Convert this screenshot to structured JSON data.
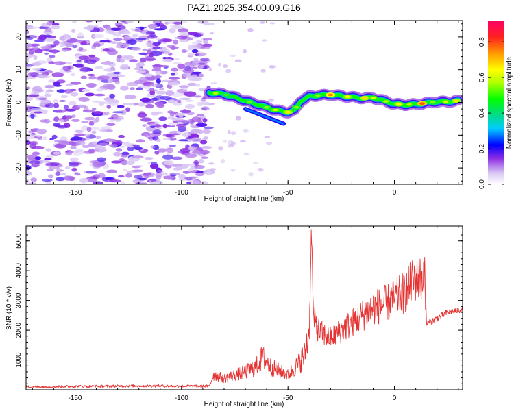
{
  "figure_title": "PAZ1.2025.354.00.09.G16",
  "chart_data": [
    {
      "type": "heatmap",
      "title": "PAZ1.2025.354.00.09.G16",
      "xlabel": "Height of straight line (km)",
      "ylabel": "Frequency (Hz)",
      "xlim": [
        -173,
        32
      ],
      "ylim": [
        -25,
        25
      ],
      "xticks": [
        -150,
        -100,
        -50,
        0
      ],
      "yticks": [
        -20,
        -10,
        0,
        10,
        20
      ],
      "noise_region_x": [
        -173,
        -87
      ],
      "signal_ridge": {
        "x": [
          -87,
          -80,
          -75,
          -70,
          -65,
          -60,
          -55,
          -50,
          -47,
          -44,
          -40,
          -35,
          -30,
          -25,
          -20,
          -15,
          -10,
          -5,
          0,
          5,
          10,
          15,
          20,
          25,
          30
        ],
        "freq": [
          3,
          2.5,
          1.5,
          0.5,
          -0.5,
          -1.5,
          -2.5,
          -3,
          -2.5,
          0.5,
          1.8,
          2.2,
          2.3,
          2,
          1.6,
          1.3,
          1.4,
          0.5,
          -0.5,
          -0.7,
          -0.6,
          -0.2,
          0.2,
          0.2,
          0.5
        ]
      },
      "colorbar": {
        "label": "Normalized spectral amplitude",
        "range": [
          0,
          0.92
        ],
        "ticks": [
          0.0,
          0.2,
          0.4,
          0.6,
          0.8
        ]
      }
    },
    {
      "type": "line",
      "xlabel": "Height of straight line (km)",
      "ylabel": "SNR (10 * v/v)",
      "xlim": [
        -173,
        32
      ],
      "ylim": [
        0,
        5500
      ],
      "xticks": [
        -150,
        -100,
        -50,
        0
      ],
      "yticks": [
        1000,
        2000,
        3000,
        4000,
        5000
      ],
      "color": "#e53333",
      "anchors": {
        "x": [
          -173,
          -120,
          -87,
          -85,
          -80,
          -70,
          -65,
          -62,
          -58,
          -50,
          -45,
          -42,
          -40,
          -39,
          -38,
          -35,
          -30,
          -20,
          -10,
          -5,
          0,
          5,
          10,
          13,
          14,
          15,
          20,
          25,
          32
        ],
        "y": [
          100,
          130,
          120,
          450,
          350,
          550,
          700,
          1000,
          700,
          450,
          800,
          1100,
          1900,
          5500,
          2300,
          1900,
          1700,
          2200,
          2700,
          2800,
          3000,
          3200,
          3700,
          3600,
          4000,
          2200,
          2400,
          2600,
          2700
        ]
      }
    }
  ]
}
